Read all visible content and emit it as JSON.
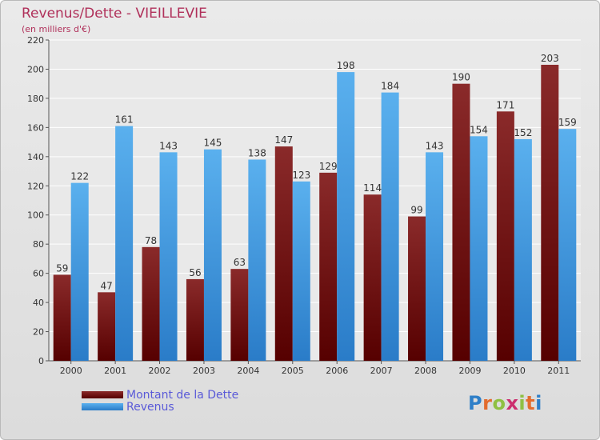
{
  "colors": {
    "title": "#b0305a",
    "dette": "#7a1717",
    "revenus": "#4aa3e6"
  },
  "logo_text": "Proxiti",
  "chart_data": {
    "type": "bar",
    "title": "Revenus/Dette - VIEILLEVIE",
    "subtitle": "(en milliers d'€)",
    "xlabel": "",
    "ylabel": "",
    "ylim": [
      0,
      220
    ],
    "yticks": [
      0,
      20,
      40,
      60,
      80,
      100,
      120,
      140,
      160,
      180,
      200,
      220
    ],
    "grid": true,
    "categories": [
      "2000",
      "2001",
      "2002",
      "2003",
      "2004",
      "2005",
      "2006",
      "2007",
      "2008",
      "2009",
      "2010",
      "2011"
    ],
    "series": [
      {
        "name": "Montant de la Dette",
        "values": [
          59,
          47,
          78,
          56,
          63,
          147,
          129,
          114,
          99,
          190,
          171,
          203
        ]
      },
      {
        "name": "Revenus",
        "values": [
          122,
          161,
          143,
          145,
          138,
          123,
          198,
          184,
          143,
          154,
          152,
          159
        ]
      }
    ],
    "legend_position": "bottom-left"
  }
}
